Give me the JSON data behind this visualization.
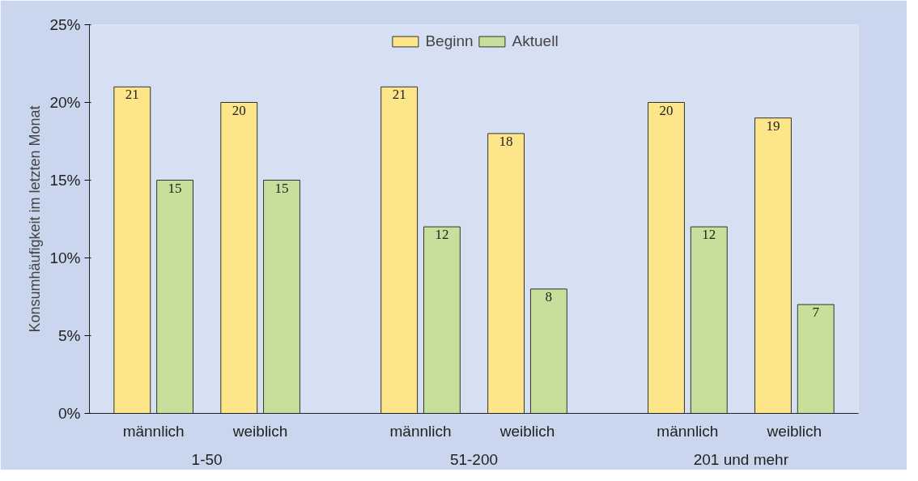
{
  "chart_data": {
    "type": "bar",
    "ylabel": "Konsumhäufigkeit im letzten Monat",
    "categories": [
      "männlich",
      "weiblich",
      "männlich",
      "weiblich",
      "männlich",
      "weiblich"
    ],
    "series": [
      {
        "name": "Beginn",
        "color": "#fde58a",
        "values": [
          21,
          20,
          21,
          18,
          20,
          19
        ]
      },
      {
        "name": "Aktuell",
        "color": "#c6e09b",
        "values": [
          15,
          15,
          12,
          8,
          12,
          7
        ]
      }
    ],
    "annotations": [
      "1-50",
      "51-200",
      "201 und mehr"
    ],
    "ylim": [
      0,
      25
    ],
    "yticks": [
      {
        "value": 0,
        "label": "0%"
      },
      {
        "value": 5,
        "label": "5%"
      },
      {
        "value": 10,
        "label": "10%"
      },
      {
        "value": 15,
        "label": "15%"
      },
      {
        "value": 20,
        "label": "20%"
      },
      {
        "value": 25,
        "label": "25%"
      }
    ],
    "data_labels": true,
    "grid": false,
    "legend": "top"
  }
}
